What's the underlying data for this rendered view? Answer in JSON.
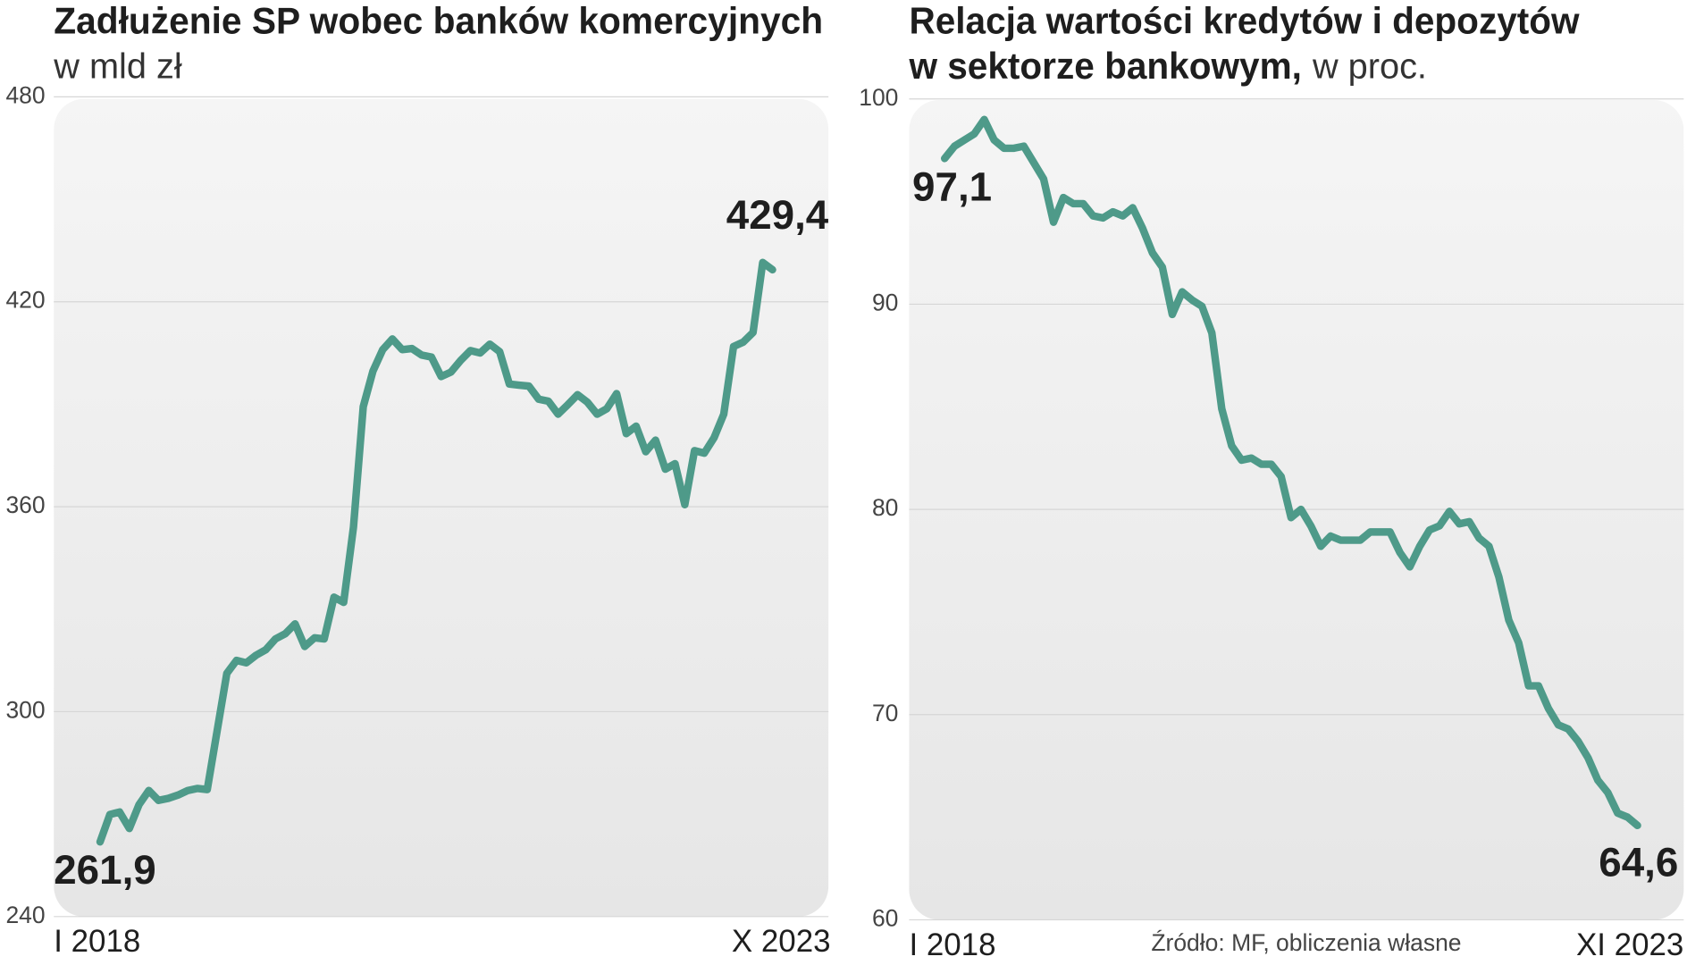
{
  "chart_data": [
    {
      "type": "line",
      "title": "Zadłużenie SP wobec banków komercyjnych",
      "subtitle": "w mld zł",
      "categories": [
        "I 2018",
        null,
        null,
        null,
        null,
        null,
        null,
        null,
        null,
        null,
        null,
        null,
        null,
        null,
        null,
        null,
        null,
        null,
        null,
        null,
        null,
        null,
        null,
        null,
        null,
        null,
        null,
        null,
        null,
        null,
        null,
        null,
        null,
        null,
        null,
        null,
        null,
        null,
        null,
        null,
        null,
        null,
        null,
        null,
        null,
        null,
        null,
        null,
        null,
        null,
        null,
        null,
        null,
        null,
        null,
        null,
        null,
        null,
        null,
        null,
        null,
        null,
        null,
        null,
        null,
        null,
        null,
        null,
        null,
        "X 2023"
      ],
      "values": [
        261.9,
        269.9,
        270.6,
        265.8,
        272.8,
        276.9,
        274.0,
        274.6,
        275.6,
        276.9,
        277.5,
        277.2,
        294.2,
        311.2,
        315.0,
        314.3,
        316.5,
        318.1,
        321.3,
        322.8,
        325.7,
        319.1,
        321.6,
        321.3,
        333.5,
        332.0,
        354.0,
        389.3,
        399.7,
        406.0,
        409.1,
        406.0,
        406.3,
        404.4,
        403.8,
        398.1,
        399.4,
        402.8,
        405.7,
        405.0,
        407.6,
        405.4,
        395.9,
        395.6,
        395.3,
        391.5,
        390.9,
        387.1,
        389.9,
        392.8,
        390.6,
        387.1,
        388.7,
        393.1,
        381.4,
        383.6,
        376.1,
        379.5,
        371.0,
        372.6,
        360.6,
        376.4,
        375.7,
        380.2,
        387.1,
        406.9,
        408.2,
        411.0,
        431.5,
        429.4
      ],
      "value_labels": [
        "261,9",
        null,
        null,
        null,
        null,
        null,
        null,
        null,
        null,
        null,
        null,
        null,
        null,
        null,
        null,
        null,
        null,
        null,
        null,
        null,
        null,
        null,
        null,
        null,
        null,
        null,
        null,
        null,
        null,
        null,
        null,
        null,
        null,
        null,
        null,
        null,
        null,
        null,
        null,
        null,
        null,
        null,
        null,
        null,
        null,
        null,
        null,
        null,
        null,
        null,
        null,
        null,
        null,
        null,
        null,
        null,
        null,
        null,
        null,
        null,
        null,
        null,
        null,
        null,
        null,
        null,
        null,
        null,
        null,
        "429,4"
      ],
      "color": "#4e9a89",
      "ylim": [
        240,
        480
      ],
      "yticks": [
        240,
        300,
        360,
        420,
        480
      ],
      "grid": true
    },
    {
      "type": "line",
      "title": [
        "Relacja wartości kredytów i depozytów",
        "w sektorze bankowym,"
      ],
      "subtitle": "w proc.",
      "categories": [
        "I 2018",
        null,
        null,
        null,
        null,
        null,
        null,
        null,
        null,
        null,
        null,
        null,
        null,
        null,
        null,
        null,
        null,
        null,
        null,
        null,
        null,
        null,
        null,
        null,
        null,
        null,
        null,
        null,
        null,
        null,
        null,
        null,
        null,
        null,
        null,
        null,
        null,
        null,
        null,
        null,
        null,
        null,
        null,
        null,
        null,
        null,
        null,
        null,
        null,
        null,
        null,
        null,
        null,
        null,
        null,
        null,
        null,
        null,
        null,
        null,
        null,
        null,
        null,
        null,
        null,
        null,
        null,
        null,
        null,
        null,
        "XI 2023"
      ],
      "values": [
        97.1,
        97.7,
        98.0,
        98.3,
        99.0,
        98.0,
        97.6,
        97.6,
        97.7,
        96.9,
        96.1,
        94.0,
        95.2,
        94.9,
        94.9,
        94.3,
        94.2,
        94.5,
        94.3,
        94.7,
        93.7,
        92.5,
        91.8,
        89.5,
        90.6,
        90.2,
        89.9,
        88.6,
        84.9,
        83.1,
        82.4,
        82.5,
        82.2,
        82.2,
        81.6,
        79.6,
        80.0,
        79.2,
        78.2,
        78.7,
        78.5,
        78.5,
        78.5,
        78.9,
        78.9,
        78.9,
        77.9,
        77.2,
        78.2,
        79.0,
        79.2,
        79.9,
        79.3,
        79.4,
        78.6,
        78.2,
        76.7,
        74.6,
        73.5,
        71.4,
        71.4,
        70.3,
        69.5,
        69.3,
        68.7,
        67.9,
        66.8,
        66.2,
        65.2,
        65.0,
        64.6
      ],
      "value_labels": [
        "97,1",
        null,
        null,
        null,
        null,
        null,
        null,
        null,
        null,
        null,
        null,
        null,
        null,
        null,
        null,
        null,
        null,
        null,
        null,
        null,
        null,
        null,
        null,
        null,
        null,
        null,
        null,
        null,
        null,
        null,
        null,
        null,
        null,
        null,
        null,
        null,
        null,
        null,
        null,
        null,
        null,
        null,
        null,
        null,
        null,
        null,
        null,
        null,
        null,
        null,
        null,
        null,
        null,
        null,
        null,
        null,
        null,
        null,
        null,
        null,
        null,
        null,
        null,
        null,
        null,
        null,
        null,
        null,
        null,
        null,
        "64,6"
      ],
      "color": "#4e9a89",
      "ylim": [
        60,
        100
      ],
      "yticks": [
        60,
        70,
        80,
        90,
        100
      ],
      "grid": true
    }
  ],
  "source": "Źródło: MF, obliczenia własne"
}
